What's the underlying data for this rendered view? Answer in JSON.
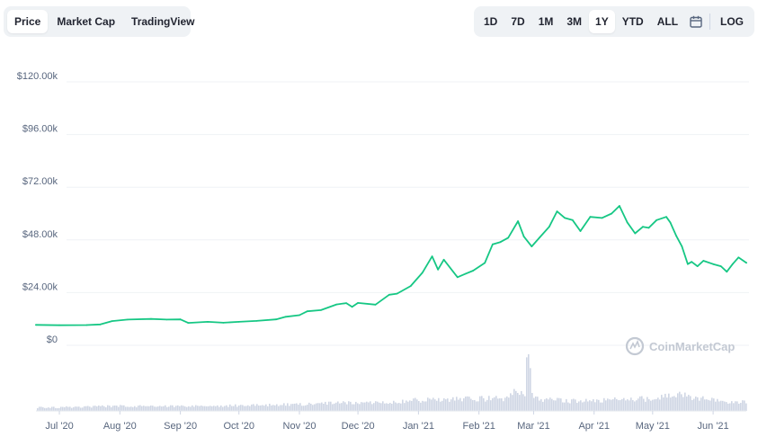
{
  "left_tabs": [
    {
      "label": "Price",
      "active": true
    },
    {
      "label": "Market Cap",
      "active": false
    },
    {
      "label": "TradingView",
      "active": false
    }
  ],
  "range_tabs": [
    {
      "label": "1D",
      "active": false
    },
    {
      "label": "7D",
      "active": false
    },
    {
      "label": "1M",
      "active": false
    },
    {
      "label": "3M",
      "active": false
    },
    {
      "label": "1Y",
      "active": true
    },
    {
      "label": "YTD",
      "active": false
    },
    {
      "label": "ALL",
      "active": false
    }
  ],
  "calendar_icon": "calendar-icon",
  "scale_toggle_label": "LOG",
  "watermark": "CoinMarketCap",
  "colors": {
    "line": "#16c784",
    "volume": "#cfd6e4",
    "grid": "#eff2f5",
    "axis_text": "#58667e",
    "tab_bg": "#eff2f5"
  },
  "chart_data": {
    "type": "line",
    "y_ticks": [
      "$0",
      "$24.00k",
      "$48.00k",
      "$72.00k",
      "$96.00k",
      "$120.00k"
    ],
    "y_tick_values": [
      0,
      24000,
      48000,
      72000,
      96000,
      120000
    ],
    "ylim": [
      0,
      120000
    ],
    "x_tick_labels": [
      "Jul '20",
      "Aug '20",
      "Sep '20",
      "Oct '20",
      "Nov '20",
      "Dec '20",
      "Jan '21",
      "Feb '21",
      "Mar '21",
      "Apr '21",
      "May '21",
      "Jun '21"
    ],
    "x_tick_dates": [
      "2020-07-01",
      "2020-08-01",
      "2020-09-01",
      "2020-10-01",
      "2020-11-01",
      "2020-12-01",
      "2021-01-01",
      "2021-02-01",
      "2021-03-01",
      "2021-04-01",
      "2021-05-01",
      "2021-06-01"
    ],
    "xlim": [
      "2020-06-19",
      "2021-06-18"
    ],
    "grid": true,
    "series": [
      {
        "points": [
          [
            "2020-06-19",
            9300
          ],
          [
            "2020-07-01",
            9150
          ],
          [
            "2020-07-15",
            9200
          ],
          [
            "2020-07-22",
            9500
          ],
          [
            "2020-07-28",
            11000
          ],
          [
            "2020-08-05",
            11700
          ],
          [
            "2020-08-17",
            12000
          ],
          [
            "2020-08-25",
            11700
          ],
          [
            "2020-09-01",
            11800
          ],
          [
            "2020-09-05",
            10200
          ],
          [
            "2020-09-15",
            10700
          ],
          [
            "2020-09-23",
            10300
          ],
          [
            "2020-10-01",
            10700
          ],
          [
            "2020-10-10",
            11100
          ],
          [
            "2020-10-20",
            11800
          ],
          [
            "2020-10-25",
            13000
          ],
          [
            "2020-11-01",
            13700
          ],
          [
            "2020-11-05",
            15500
          ],
          [
            "2020-11-12",
            16000
          ],
          [
            "2020-11-20",
            18600
          ],
          [
            "2020-11-25",
            19200
          ],
          [
            "2020-11-28",
            17500
          ],
          [
            "2020-12-01",
            19300
          ],
          [
            "2020-12-10",
            18500
          ],
          [
            "2020-12-17",
            23000
          ],
          [
            "2020-12-21",
            23500
          ],
          [
            "2020-12-28",
            27000
          ],
          [
            "2021-01-03",
            33000
          ],
          [
            "2021-01-08",
            40500
          ],
          [
            "2021-01-11",
            34500
          ],
          [
            "2021-01-14",
            39000
          ],
          [
            "2021-01-21",
            31000
          ],
          [
            "2021-01-25",
            32500
          ],
          [
            "2021-01-29",
            34000
          ],
          [
            "2021-02-04",
            37500
          ],
          [
            "2021-02-08",
            46000
          ],
          [
            "2021-02-12",
            47000
          ],
          [
            "2021-02-16",
            49000
          ],
          [
            "2021-02-21",
            56500
          ],
          [
            "2021-02-24",
            49500
          ],
          [
            "2021-02-28",
            45000
          ],
          [
            "2021-03-04",
            49000
          ],
          [
            "2021-03-09",
            54000
          ],
          [
            "2021-03-13",
            61000
          ],
          [
            "2021-03-17",
            58000
          ],
          [
            "2021-03-21",
            57000
          ],
          [
            "2021-03-25",
            52000
          ],
          [
            "2021-03-30",
            58500
          ],
          [
            "2021-04-05",
            58000
          ],
          [
            "2021-04-10",
            60000
          ],
          [
            "2021-04-14",
            63500
          ],
          [
            "2021-04-18",
            56000
          ],
          [
            "2021-04-22",
            51000
          ],
          [
            "2021-04-26",
            54000
          ],
          [
            "2021-04-29",
            53500
          ],
          [
            "2021-05-03",
            57000
          ],
          [
            "2021-05-08",
            58500
          ],
          [
            "2021-05-10",
            56000
          ],
          [
            "2021-05-13",
            50000
          ],
          [
            "2021-05-16",
            45000
          ],
          [
            "2021-05-19",
            37000
          ],
          [
            "2021-05-21",
            38000
          ],
          [
            "2021-05-24",
            36000
          ],
          [
            "2021-05-27",
            38500
          ],
          [
            "2021-06-01",
            37000
          ],
          [
            "2021-06-05",
            36000
          ],
          [
            "2021-06-08",
            33500
          ],
          [
            "2021-06-11",
            37000
          ],
          [
            "2021-06-14",
            40000
          ],
          [
            "2021-06-18",
            37600
          ]
        ]
      }
    ],
    "volume": {
      "dates": [
        "2020-06-19",
        "2020-07-01",
        "2020-07-15",
        "2020-08-01",
        "2020-08-15",
        "2020-09-01",
        "2020-09-15",
        "2020-10-01",
        "2020-10-15",
        "2020-11-01",
        "2020-11-15",
        "2020-12-01",
        "2020-12-15",
        "2021-01-01",
        "2021-01-15",
        "2021-02-01",
        "2021-02-15",
        "2021-02-26",
        "2021-03-01",
        "2021-03-15",
        "2021-04-01",
        "2021-04-15",
        "2021-05-01",
        "2021-05-15",
        "2021-06-01",
        "2021-06-18"
      ],
      "relative": [
        0.06,
        0.06,
        0.07,
        0.08,
        0.08,
        0.08,
        0.08,
        0.09,
        0.1,
        0.11,
        0.13,
        0.13,
        0.15,
        0.18,
        0.2,
        0.2,
        0.2,
        0.95,
        0.2,
        0.17,
        0.16,
        0.2,
        0.2,
        0.27,
        0.17,
        0.14
      ]
    }
  }
}
